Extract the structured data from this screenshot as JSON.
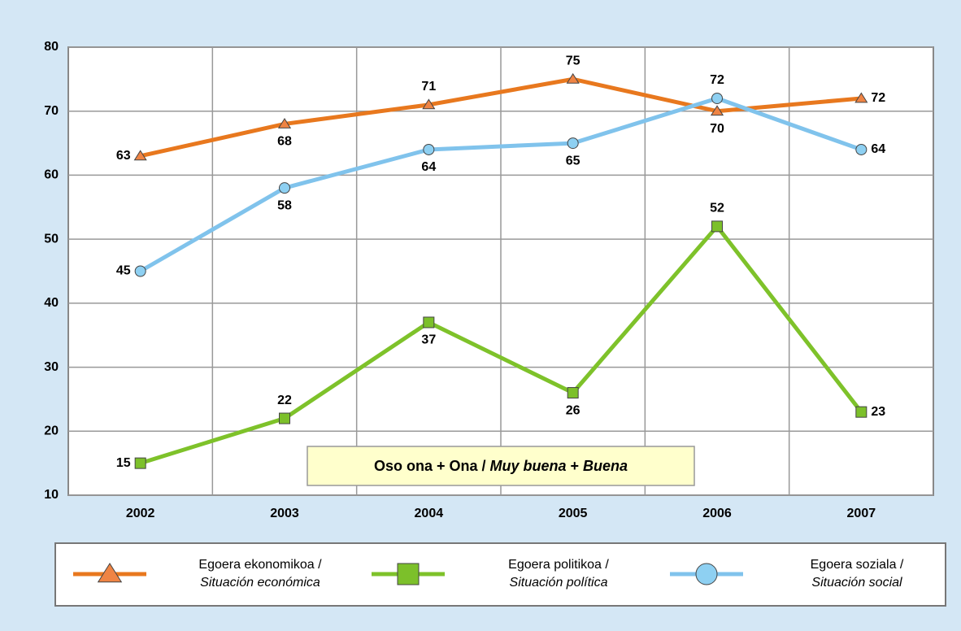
{
  "chart_data": {
    "type": "line",
    "categories": [
      "2002",
      "2003",
      "2004",
      "2005",
      "2006",
      "2007"
    ],
    "series": [
      {
        "name": [
          "Egoera ekonomikoa /",
          "Situación económica"
        ],
        "color": "#e8781e",
        "marker": "triangle",
        "marker_color": "#ef8444",
        "values": [
          63,
          68,
          71,
          75,
          70,
          72
        ]
      },
      {
        "name": [
          "Egoera politikoa /",
          "Situación política"
        ],
        "color": "#7ec22a",
        "marker": "square",
        "marker_color": "#7cc02a",
        "values": [
          15,
          22,
          37,
          26,
          52,
          23
        ]
      },
      {
        "name": [
          "Egoera soziala /",
          "Situación social"
        ],
        "color": "#80c3ec",
        "marker": "circle",
        "marker_color": "#8ed0f2",
        "values": [
          45,
          58,
          64,
          65,
          72,
          64
        ]
      }
    ],
    "ylim": [
      10,
      80
    ],
    "yticks": [
      10,
      20,
      30,
      40,
      50,
      60,
      70,
      80
    ],
    "grid": true,
    "annotation": [
      "Oso ona + Ona /",
      "Muy buena",
      "+",
      "Buena"
    ],
    "legend": "bottom"
  }
}
